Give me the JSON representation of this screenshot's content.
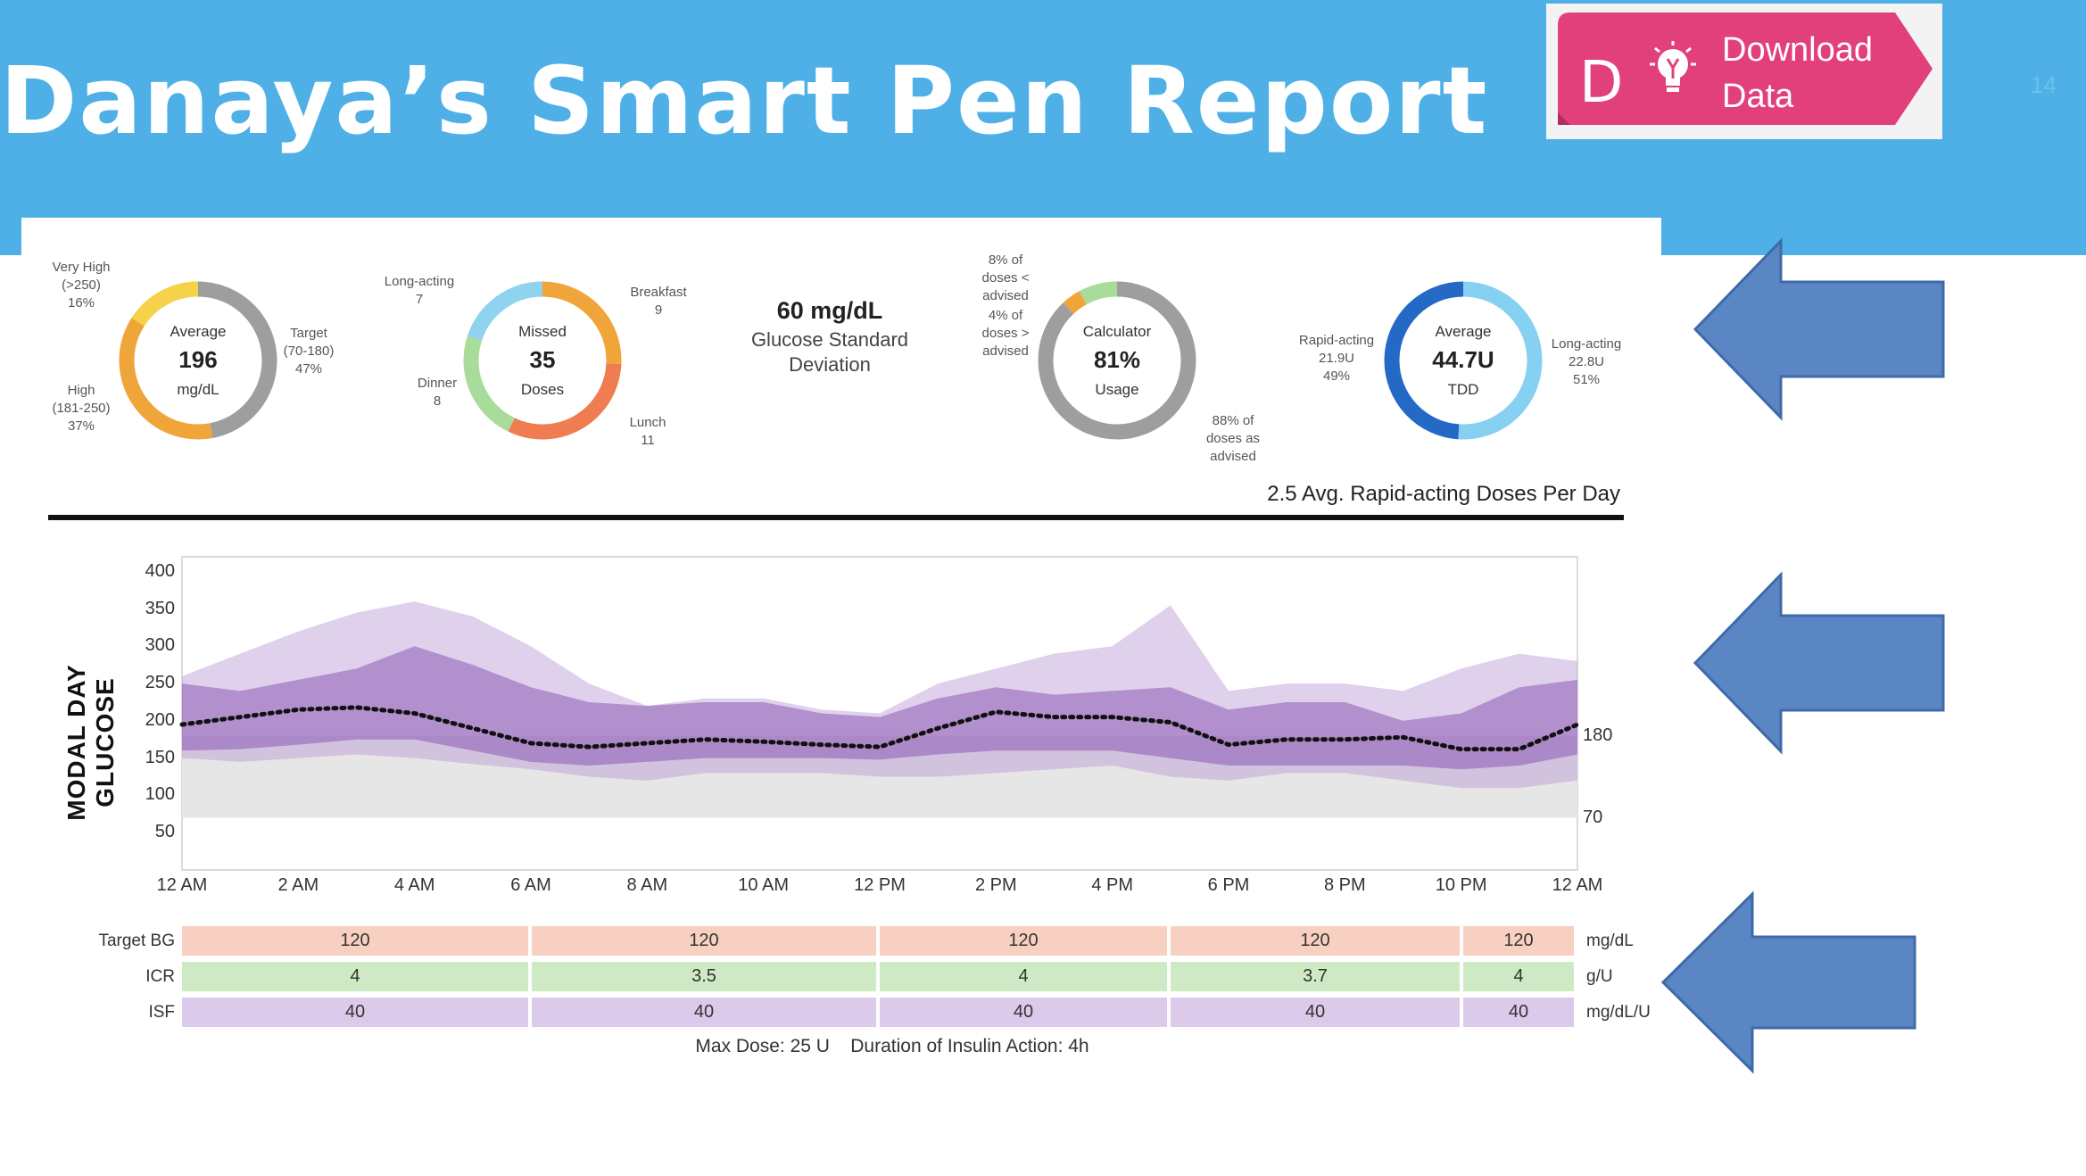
{
  "header": {
    "title": "Danaya’s Smart Pen Report",
    "download": {
      "letter": "D",
      "line1": "Download",
      "line2": "Data",
      "icon": "lightbulb-icon"
    },
    "slide_number": "14"
  },
  "colors": {
    "header_bg": "#4eb0e6",
    "download_pink": "#e2407a",
    "arrow_blue": "#5b86c4",
    "very_high": "#f5d24a",
    "high": "#f0a53a",
    "target": "#9e9e9e",
    "missed_breakfast": "#f0a53a",
    "missed_lunch": "#ef7d51",
    "missed_dinner": "#a9dc9a",
    "missed_long": "#8fd3ef",
    "rapid_acting": "#2469c6",
    "long_acting": "#86d0f2"
  },
  "glucose_donut": {
    "center_top": "Average",
    "center_value": "196",
    "center_unit": "mg/dL",
    "very_high": {
      "l1": "Very High",
      "l2": "(>250)",
      "l3": "16%",
      "pct": 16
    },
    "high": {
      "l1": "High",
      "l2": "(181-250)",
      "l3": "37%",
      "pct": 37
    },
    "target": {
      "l1": "Target",
      "l2": "(70-180)",
      "l3": "47%",
      "pct": 47
    }
  },
  "missed_donut": {
    "center_top": "Missed",
    "center_value": "35",
    "center_unit": "Doses",
    "long_acting": {
      "l1": "Long-acting",
      "l2": "7",
      "value": 7
    },
    "breakfast": {
      "l1": "Breakfast",
      "l2": "9",
      "value": 9
    },
    "lunch": {
      "l1": "Lunch",
      "l2": "11",
      "value": 11
    },
    "dinner": {
      "l1": "Dinner",
      "l2": "8",
      "value": 8
    }
  },
  "std_dev": {
    "value": "60 mg/dL",
    "line1": "Glucose Standard",
    "line2": "Deviation"
  },
  "calculator_donut": {
    "center_top": "Calculator",
    "center_value": "81%",
    "center_unit": "Usage",
    "less": {
      "l1": "8% of",
      "l2": "doses <",
      "l3": "advised",
      "pct": 8
    },
    "more": {
      "l1": "4% of",
      "l2": "doses >",
      "l3": "advised",
      "pct": 4
    },
    "as_advised": {
      "l1": "88% of",
      "l2": "doses as",
      "l3": "advised",
      "pct": 88
    }
  },
  "tdd_donut": {
    "center_top": "Average",
    "center_value": "44.7U",
    "center_unit": "TDD",
    "rapid": {
      "l1": "Rapid-acting",
      "l2": "21.9U",
      "l3": "49%",
      "pct": 49
    },
    "long": {
      "l1": "Long-acting",
      "l2": "22.8U",
      "l3": "51%",
      "pct": 51
    }
  },
  "avg_doses": "2.5 Avg. Rapid-acting Doses Per Day",
  "chart_data": {
    "type": "area",
    "ylabel": "MODAL DAY GLUCOSE",
    "ylim": [
      0,
      420
    ],
    "y_ticks": [
      "400",
      "350",
      "300",
      "250",
      "200",
      "150",
      "100",
      "50"
    ],
    "x_ticks": [
      "12 AM",
      "2 AM",
      "4 AM",
      "6 AM",
      "8 AM",
      "10 AM",
      "12 PM",
      "2 PM",
      "4 PM",
      "6 PM",
      "8 PM",
      "10 PM",
      "12 AM"
    ],
    "target_range": {
      "low": 70,
      "high": 180,
      "low_label": "70",
      "high_label": "180"
    },
    "x_hours": [
      0,
      1,
      2,
      3,
      4,
      5,
      6,
      7,
      8,
      9,
      10,
      11,
      12,
      13,
      14,
      15,
      16,
      17,
      18,
      19,
      20,
      21,
      22,
      23,
      24
    ],
    "series": [
      {
        "values": [
          260,
          290,
          320,
          345,
          360,
          340,
          300,
          250,
          220,
          230,
          230,
          215,
          210,
          250,
          270,
          290,
          300,
          355,
          240,
          250,
          250,
          240,
          270,
          290,
          280
        ]
      },
      {
        "values": [
          250,
          240,
          255,
          270,
          300,
          275,
          245,
          225,
          220,
          225,
          225,
          210,
          205,
          230,
          245,
          235,
          240,
          245,
          215,
          225,
          225,
          200,
          210,
          245,
          255
        ]
      },
      {
        "values": [
          195,
          205,
          215,
          218,
          210,
          190,
          170,
          165,
          170,
          175,
          172,
          168,
          165,
          190,
          212,
          205,
          205,
          198,
          168,
          175,
          175,
          178,
          162,
          162,
          195
        ]
      },
      {
        "values": [
          160,
          162,
          168,
          175,
          175,
          160,
          145,
          140,
          145,
          150,
          150,
          150,
          148,
          155,
          160,
          160,
          160,
          150,
          140,
          140,
          140,
          140,
          135,
          140,
          155
        ]
      },
      {
        "values": [
          150,
          145,
          150,
          155,
          150,
          142,
          135,
          125,
          120,
          130,
          130,
          130,
          125,
          125,
          130,
          135,
          140,
          125,
          120,
          130,
          130,
          120,
          110,
          110,
          120
        ]
      }
    ]
  },
  "settings_table": {
    "rows": [
      {
        "label": "Target BG",
        "values": [
          "120",
          "120",
          "120",
          "120",
          "120"
        ],
        "unit": "mg/dL"
      },
      {
        "label": "ICR",
        "values": [
          "4",
          "3.5",
          "4",
          "3.7",
          "4"
        ],
        "unit": "g/U"
      },
      {
        "label": "ISF",
        "values": [
          "40",
          "40",
          "40",
          "40",
          "40"
        ],
        "unit": "mg/dL/U"
      }
    ],
    "footer": "Max Dose: 25 U    Duration of Insulin Action: 4h"
  }
}
